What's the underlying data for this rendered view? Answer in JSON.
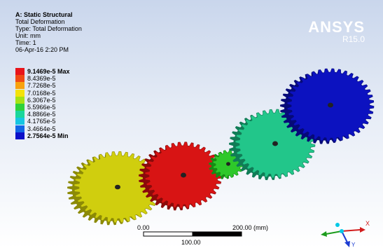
{
  "header": {
    "title": "A: Static Structural",
    "subtitle": "Total Deformation",
    "type_line": "Type: Total Deformation",
    "unit_line": "Unit: mm",
    "time_line": "Time: 1",
    "date_line": "06-Apr-16 2:20 PM"
  },
  "brand": {
    "name": "ANSYS",
    "version": "R15.0"
  },
  "legend": {
    "entries": [
      {
        "label": "9.1469e-5 Max",
        "color": "#e8141a"
      },
      {
        "label": "8.4369e-5",
        "color": "#f04a14"
      },
      {
        "label": "7.7268e-5",
        "color": "#f8a20e"
      },
      {
        "label": "7.0168e-5",
        "color": "#f4e20a"
      },
      {
        "label": "6.3067e-5",
        "color": "#a6e214"
      },
      {
        "label": "5.5966e-5",
        "color": "#2ed23a"
      },
      {
        "label": "4.8866e-5",
        "color": "#1ad69c"
      },
      {
        "label": "4.1765e-5",
        "color": "#16c6e2"
      },
      {
        "label": "3.4664e-5",
        "color": "#1266e6"
      },
      {
        "label": "2.7564e-5 Min",
        "color": "#0c10c8"
      }
    ]
  },
  "scale": {
    "left": "0.00",
    "right": "200.00 (mm)",
    "mid": "100.00"
  },
  "gears": [
    {
      "name": "gear-yellow",
      "fill": "#d0ce0e",
      "dark": "#8c8a06"
    },
    {
      "name": "gear-red",
      "fill": "#d81414",
      "dark": "#8a0a0a"
    },
    {
      "name": "gear-green-small",
      "fill": "#2ec82a",
      "dark": "#168c14"
    },
    {
      "name": "gear-teal",
      "fill": "#22c68a",
      "dark": "#107c56"
    },
    {
      "name": "gear-blue",
      "fill": "#0c12c0",
      "dark": "#060a78"
    }
  ],
  "triad": {
    "x_label": "X",
    "y_label": "Y"
  }
}
